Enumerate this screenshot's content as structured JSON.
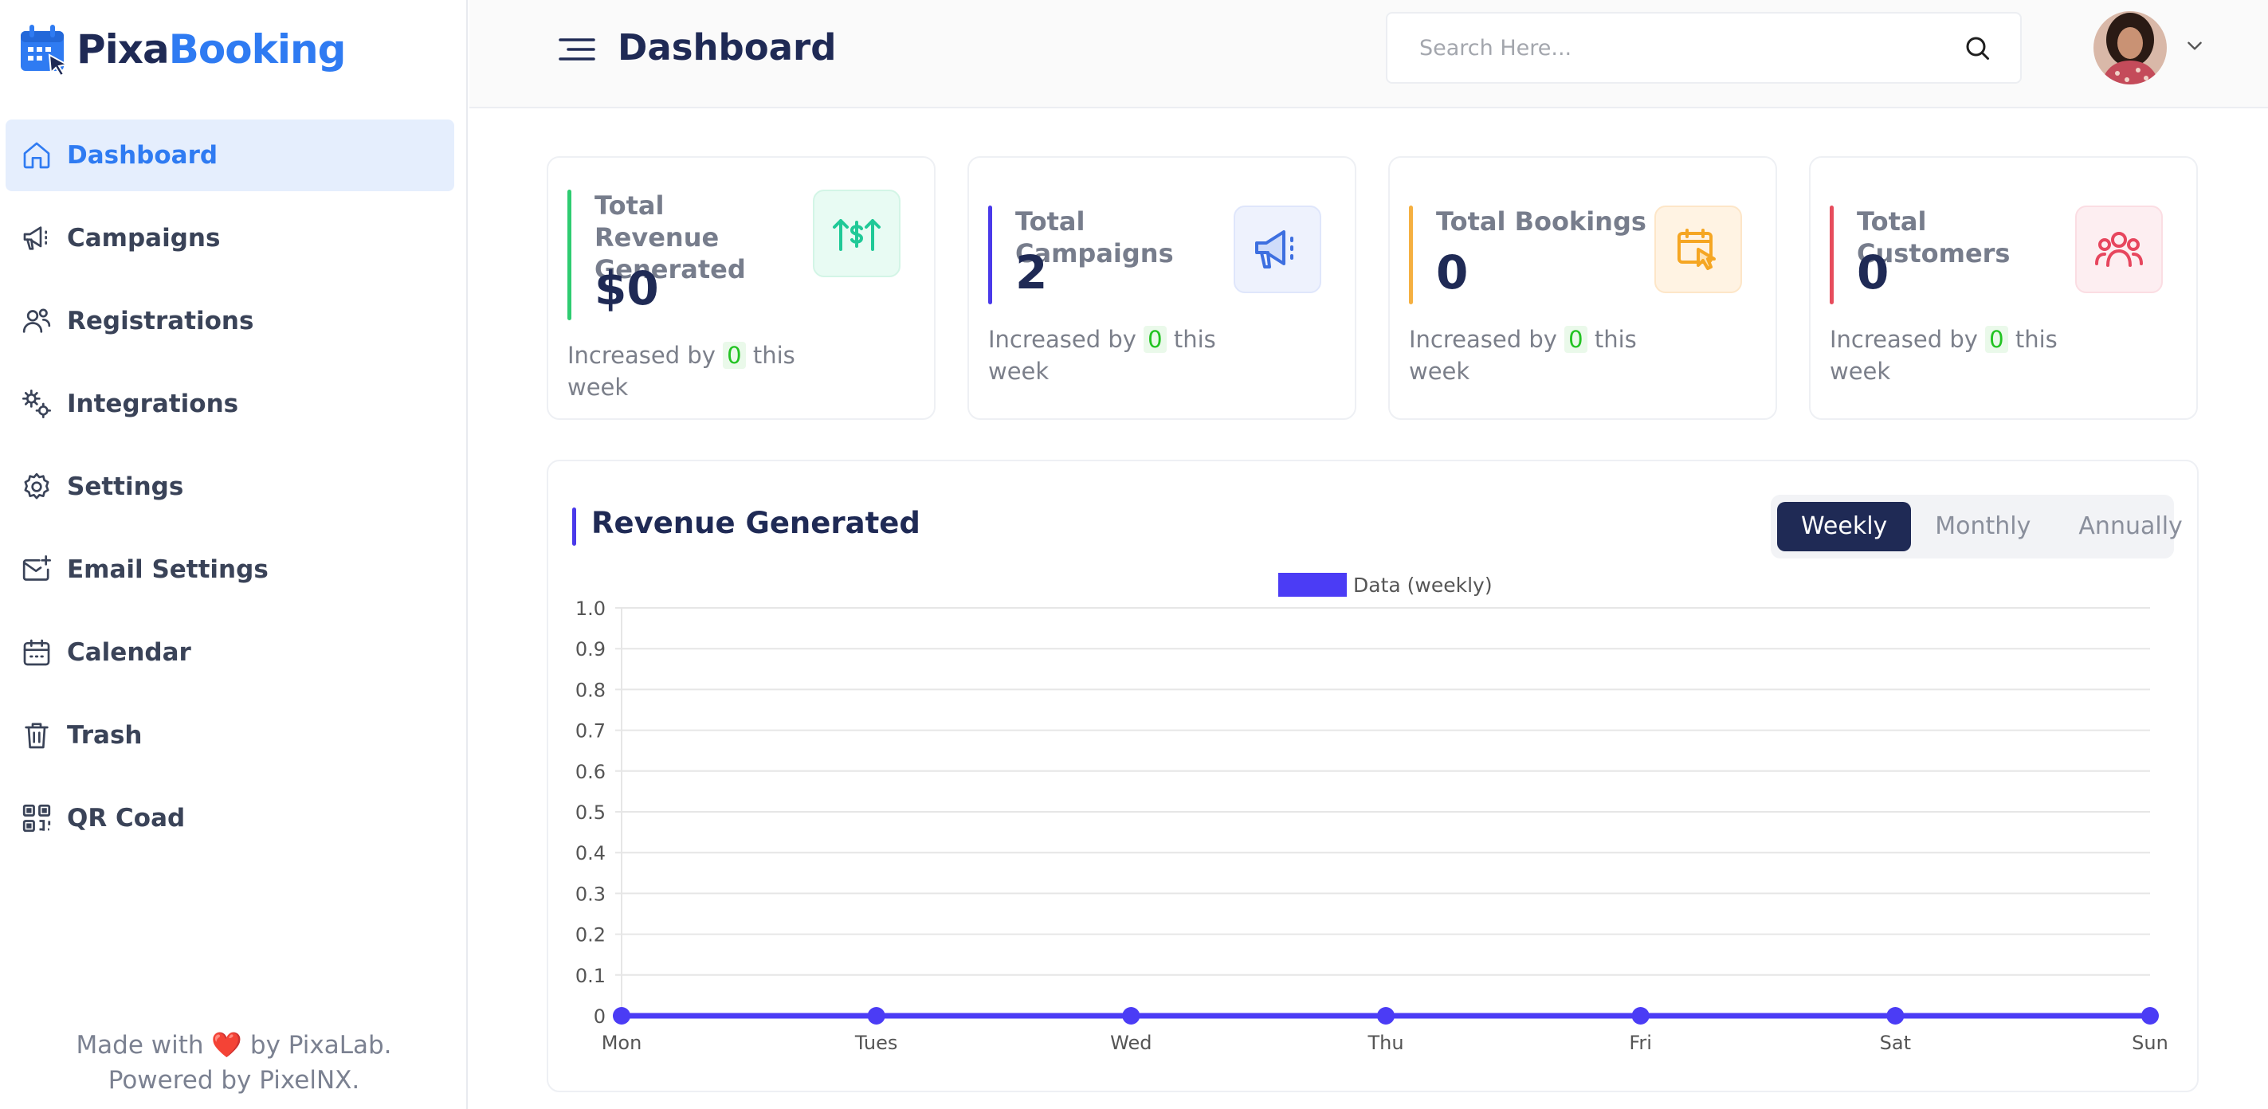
{
  "brand": {
    "part1": "Pixa",
    "part2": "Booking"
  },
  "sidebar": {
    "items": [
      {
        "label": "Dashboard",
        "icon": "home-icon",
        "active": true
      },
      {
        "label": "Campaigns",
        "icon": "megaphone-icon"
      },
      {
        "label": "Registrations",
        "icon": "users-icon"
      },
      {
        "label": "Integrations",
        "icon": "integrations-icon"
      },
      {
        "label": "Settings",
        "icon": "gear-icon"
      },
      {
        "label": "Email Settings",
        "icon": "email-settings-icon"
      },
      {
        "label": "Calendar",
        "icon": "calendar-icon"
      },
      {
        "label": "Trash",
        "icon": "trash-icon"
      },
      {
        "label": "QR Coad",
        "icon": "qr-code-icon"
      }
    ],
    "footer": {
      "line1_pre": "Made with",
      "heart": "❤️",
      "line1_post": "by PixaLab.",
      "line2": "Powered by PixelNX."
    }
  },
  "header": {
    "title": "Dashboard",
    "search_placeholder": "Search Here..."
  },
  "cards": [
    {
      "title": "Total Revenue Generated",
      "value": "$0",
      "sub_pre": "Increased by",
      "sub_val": "0",
      "sub_post": "this week",
      "accent": "#2ecc71",
      "icon": "revenue-arrows-icon"
    },
    {
      "title": "Total Campaigns",
      "value": "2",
      "sub_pre": "Increased by",
      "sub_val": "0",
      "sub_post": "this week",
      "accent": "#4a3aea",
      "icon": "megaphone-icon"
    },
    {
      "title": "Total Bookings",
      "value": "0",
      "sub_pre": "Increased by",
      "sub_val": "0",
      "sub_post": "this week",
      "accent": "#f5b041",
      "icon": "booking-icon"
    },
    {
      "title": "Total Customers",
      "value": "0",
      "sub_pre": "Increased by",
      "sub_val": "0",
      "sub_post": "this week",
      "accent": "#e74c5c",
      "icon": "customers-icon"
    }
  ],
  "revenue": {
    "title": "Revenue Generated",
    "tabs": [
      {
        "label": "Weekly",
        "active": true
      },
      {
        "label": "Monthly"
      },
      {
        "label": "Annually"
      }
    ]
  },
  "chart_data": {
    "type": "line",
    "categories": [
      "Mon",
      "Tues",
      "Wed",
      "Thu",
      "Fri",
      "Sat",
      "Sun"
    ],
    "series": [
      {
        "name": "Data (weekly)",
        "values": [
          0,
          0,
          0,
          0,
          0,
          0,
          0
        ],
        "color": "#4b3cf5"
      }
    ],
    "yticks": [
      "0",
      "0.1",
      "0.2",
      "0.3",
      "0.4",
      "0.5",
      "0.6",
      "0.7",
      "0.8",
      "0.9",
      "1.0"
    ],
    "ylim": [
      0,
      1
    ],
    "grid": true,
    "legend": "top-center"
  }
}
